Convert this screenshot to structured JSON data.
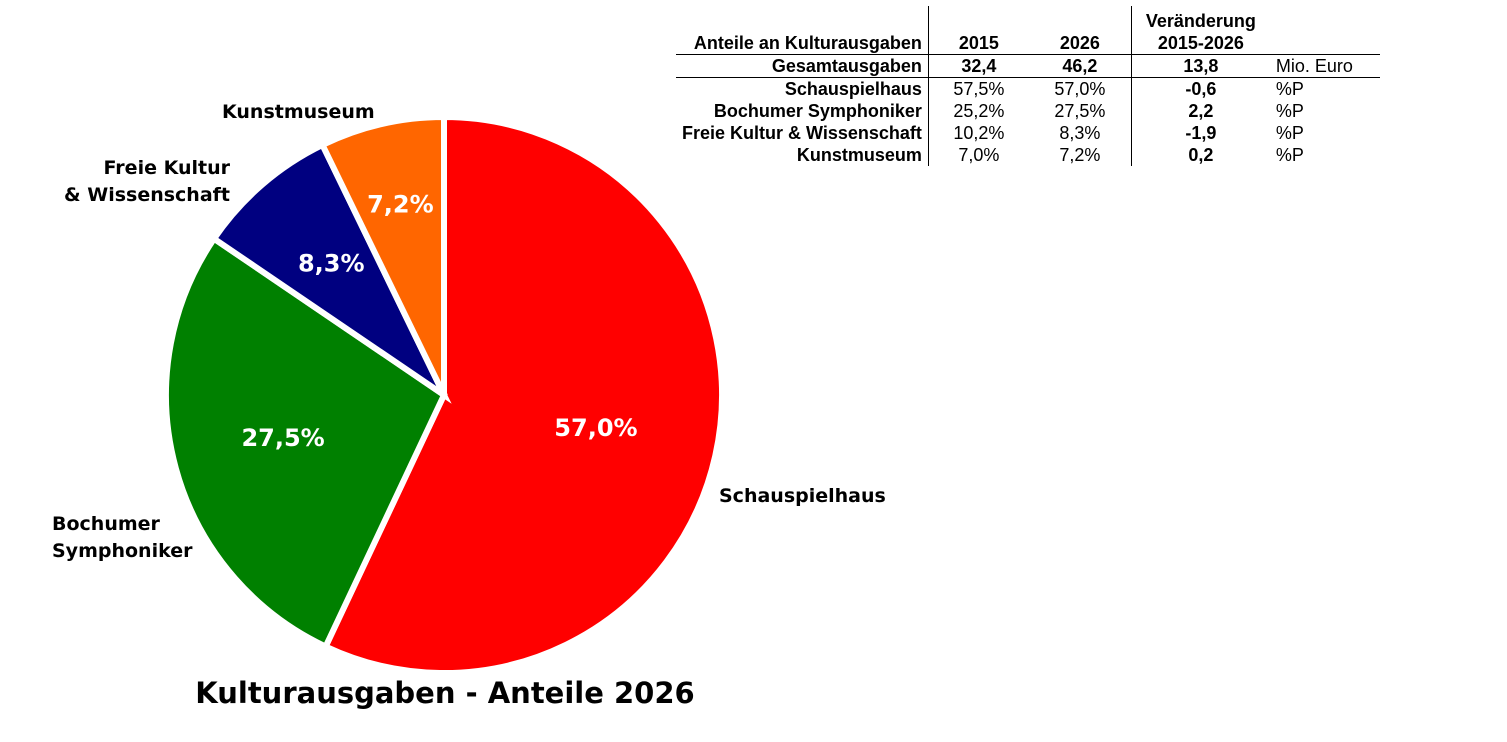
{
  "chart_data": {
    "type": "pie",
    "title": "Kulturausgaben - Anteile 2026",
    "slices": [
      {
        "name": "Schauspielhaus",
        "value": 57.0,
        "label": "57,0%",
        "color": "#ff0000"
      },
      {
        "name": "Bochumer Symphoniker",
        "value": 27.5,
        "label": "27,5%",
        "color": "#008000"
      },
      {
        "name": "Freie Kultur & Wissenschaft",
        "value": 8.3,
        "label": "8,3%",
        "color": "#000080"
      },
      {
        "name": "Kunstmuseum",
        "value": 7.2,
        "label": "7,2%",
        "color": "#ff6600"
      }
    ],
    "category_labels": {
      "schauspielhaus": [
        "Schauspielhaus"
      ],
      "symphoniker": [
        "Bochumer",
        "Symphoniker"
      ],
      "freie_kultur": [
        "Freie Kultur",
        "& Wissenschaft"
      ],
      "kunstmuseum": [
        "Kunstmuseum"
      ]
    }
  },
  "table": {
    "header": {
      "label": "Anteile an Kulturausgaben",
      "col_2015": "2015",
      "col_2026": "2026",
      "col_change_line1": "Veränderung",
      "col_change_line2": "2015-2026"
    },
    "total": {
      "label": "Gesamtausgaben",
      "v2015": "32,4",
      "v2026": "46,2",
      "change": "13,8",
      "unit": "Mio. Euro"
    },
    "rows": [
      {
        "label": "Schauspielhaus",
        "v2015": "57,5%",
        "v2026": "57,0%",
        "change": "-0,6",
        "unit": "%P"
      },
      {
        "label": "Bochumer Symphoniker",
        "v2015": "25,2%",
        "v2026": "27,5%",
        "change": "2,2",
        "unit": "%P"
      },
      {
        "label": "Freie Kultur & Wissenschaft",
        "v2015": "10,2%",
        "v2026": "8,3%",
        "change": "-1,9",
        "unit": "%P"
      },
      {
        "label": "Kunstmuseum",
        "v2015": "7,0%",
        "v2026": "7,2%",
        "change": "0,2",
        "unit": "%P"
      }
    ]
  }
}
